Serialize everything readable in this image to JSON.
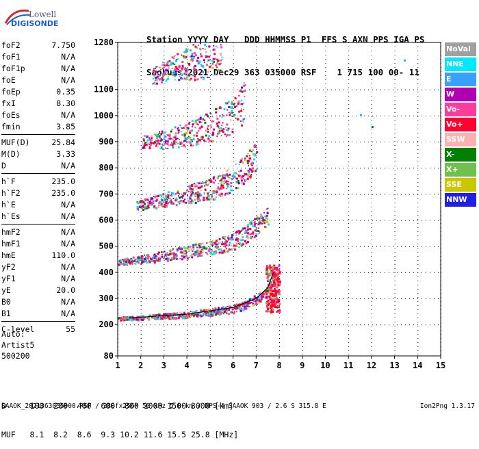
{
  "logo": {
    "line1": "Lowell",
    "line2": "DIGISONDE"
  },
  "header": {
    "line1": "Station YYYY DAY   DDD HHMMSS P1  FFS S AXN PPS IGA PS",
    "line2": "SaoLuis 2021 Dec29 363 035000 RSF    1 715 100 00- 11"
  },
  "params": [
    {
      "label": "foF2",
      "value": "7.750"
    },
    {
      "label": "foF1",
      "value": "N/A"
    },
    {
      "label": "foF1p",
      "value": "N/A"
    },
    {
      "label": "foE",
      "value": "N/A"
    },
    {
      "label": "foEp",
      "value": "0.35"
    },
    {
      "label": "fxI",
      "value": "8.30"
    },
    {
      "label": "foEs",
      "value": "N/A"
    },
    {
      "label": "fmin",
      "value": "3.85"
    },
    {
      "sep": true
    },
    {
      "label": "MUF(D)",
      "value": "25.84"
    },
    {
      "label": "M(D)",
      "value": "3.33"
    },
    {
      "label": "D",
      "value": "N/A"
    },
    {
      "sep": true
    },
    {
      "label": "h`F",
      "value": "235.0"
    },
    {
      "label": "h`F2",
      "value": "235.0"
    },
    {
      "label": "h`E",
      "value": "N/A"
    },
    {
      "label": "h`Es",
      "value": "N/A"
    },
    {
      "sep": true
    },
    {
      "label": "hmF2",
      "value": "N/A"
    },
    {
      "label": "hmF1",
      "value": "N/A"
    },
    {
      "label": "hmE",
      "value": "110.0"
    },
    {
      "label": "yF2",
      "value": "N/A"
    },
    {
      "label": "yF1",
      "value": "N/A"
    },
    {
      "label": "yE",
      "value": "20.0"
    },
    {
      "label": "B0",
      "value": "N/A"
    },
    {
      "label": "B1",
      "value": "N/A"
    },
    {
      "sep": true
    },
    {
      "label": "C-level",
      "value": "55"
    }
  ],
  "auto": {
    "line1": "Auto:",
    "line2": "Artist5",
    "line3": "500200"
  },
  "legend": [
    {
      "label": "NoVal",
      "color": "#a0a0a0"
    },
    {
      "label": "NNE",
      "color": "#00e8ff"
    },
    {
      "label": "E",
      "color": "#3aa0ff"
    },
    {
      "label": "W",
      "color": "#b000b0"
    },
    {
      "label": "Vo-",
      "color": "#ff3c9c"
    },
    {
      "label": "Vo+",
      "color": "#ff0030"
    },
    {
      "label": "SSW",
      "color": "#ffb0b0"
    },
    {
      "label": "X-",
      "color": "#008000"
    },
    {
      "label": "X+",
      "color": "#70c050"
    },
    {
      "label": "SSE",
      "color": "#c8c800"
    },
    {
      "label": "NNW",
      "color": "#2020e0"
    }
  ],
  "chart_data": {
    "type": "scatter",
    "xlim": [
      1,
      15
    ],
    "ylim": [
      80,
      1280
    ],
    "x_ticks": [
      1,
      2,
      3,
      4,
      5,
      6,
      7,
      8,
      9,
      10,
      11,
      12,
      13,
      14,
      15
    ],
    "y_ticks": [
      80,
      200,
      300,
      400,
      500,
      600,
      700,
      800,
      900,
      1000,
      1100,
      1280
    ],
    "traces": [
      {
        "name": "1st hop",
        "points": [
          [
            1,
            225
          ],
          [
            2,
            228
          ],
          [
            3,
            235
          ],
          [
            4,
            240
          ],
          [
            5,
            250
          ],
          [
            6,
            262
          ],
          [
            6.5,
            275
          ],
          [
            7,
            300
          ],
          [
            7.5,
            330
          ],
          [
            7.75,
            380
          ],
          [
            8,
            420
          ]
        ]
      },
      {
        "name": "2nd hop",
        "points": [
          [
            1,
            440
          ],
          [
            2,
            450
          ],
          [
            3,
            465
          ],
          [
            4,
            480
          ],
          [
            5,
            495
          ],
          [
            6,
            520
          ],
          [
            6.5,
            545
          ],
          [
            7,
            580
          ],
          [
            7.5,
            620
          ]
        ]
      },
      {
        "name": "3rd hop",
        "points": [
          [
            1.8,
            655
          ],
          [
            3,
            680
          ],
          [
            4,
            700
          ],
          [
            5,
            720
          ],
          [
            6,
            760
          ],
          [
            6.5,
            800
          ],
          [
            7,
            850
          ]
        ]
      },
      {
        "name": "4th hop",
        "points": [
          [
            2,
            900
          ],
          [
            3,
            910
          ],
          [
            4,
            930
          ],
          [
            5,
            960
          ],
          [
            6,
            1000
          ],
          [
            6.5,
            1060
          ]
        ]
      },
      {
        "name": "5th hop",
        "points": [
          [
            2.5,
            1150
          ],
          [
            3,
            1170
          ],
          [
            4,
            1200
          ],
          [
            5,
            1230
          ],
          [
            5.5,
            1260
          ]
        ]
      }
    ],
    "isolated_points": [
      [
        11.5,
        1005
      ],
      [
        12,
        960
      ],
      [
        13.4,
        1215
      ]
    ],
    "profile_line": [
      [
        1.5,
        225
      ],
      [
        4,
        240
      ],
      [
        6,
        265
      ],
      [
        7,
        300
      ],
      [
        7.5,
        340
      ],
      [
        7.75,
        400
      ]
    ]
  },
  "mufd": {
    "row1": "D     100  200  400  600  800 1000 1500 3000 [km]",
    "row2": "MUF   8.1  8.2  8.6  9.3 10.2 11.6 15.5 25.8 [MHz]"
  },
  "footer": {
    "left": "SAAOK_2021363035000.RSF / 280fx256h 50 kHz 5.0 km / DPS-4 SAAOK 903 / 2.6 S 315.8 E",
    "right": "Ion2Png 1.3.17"
  }
}
